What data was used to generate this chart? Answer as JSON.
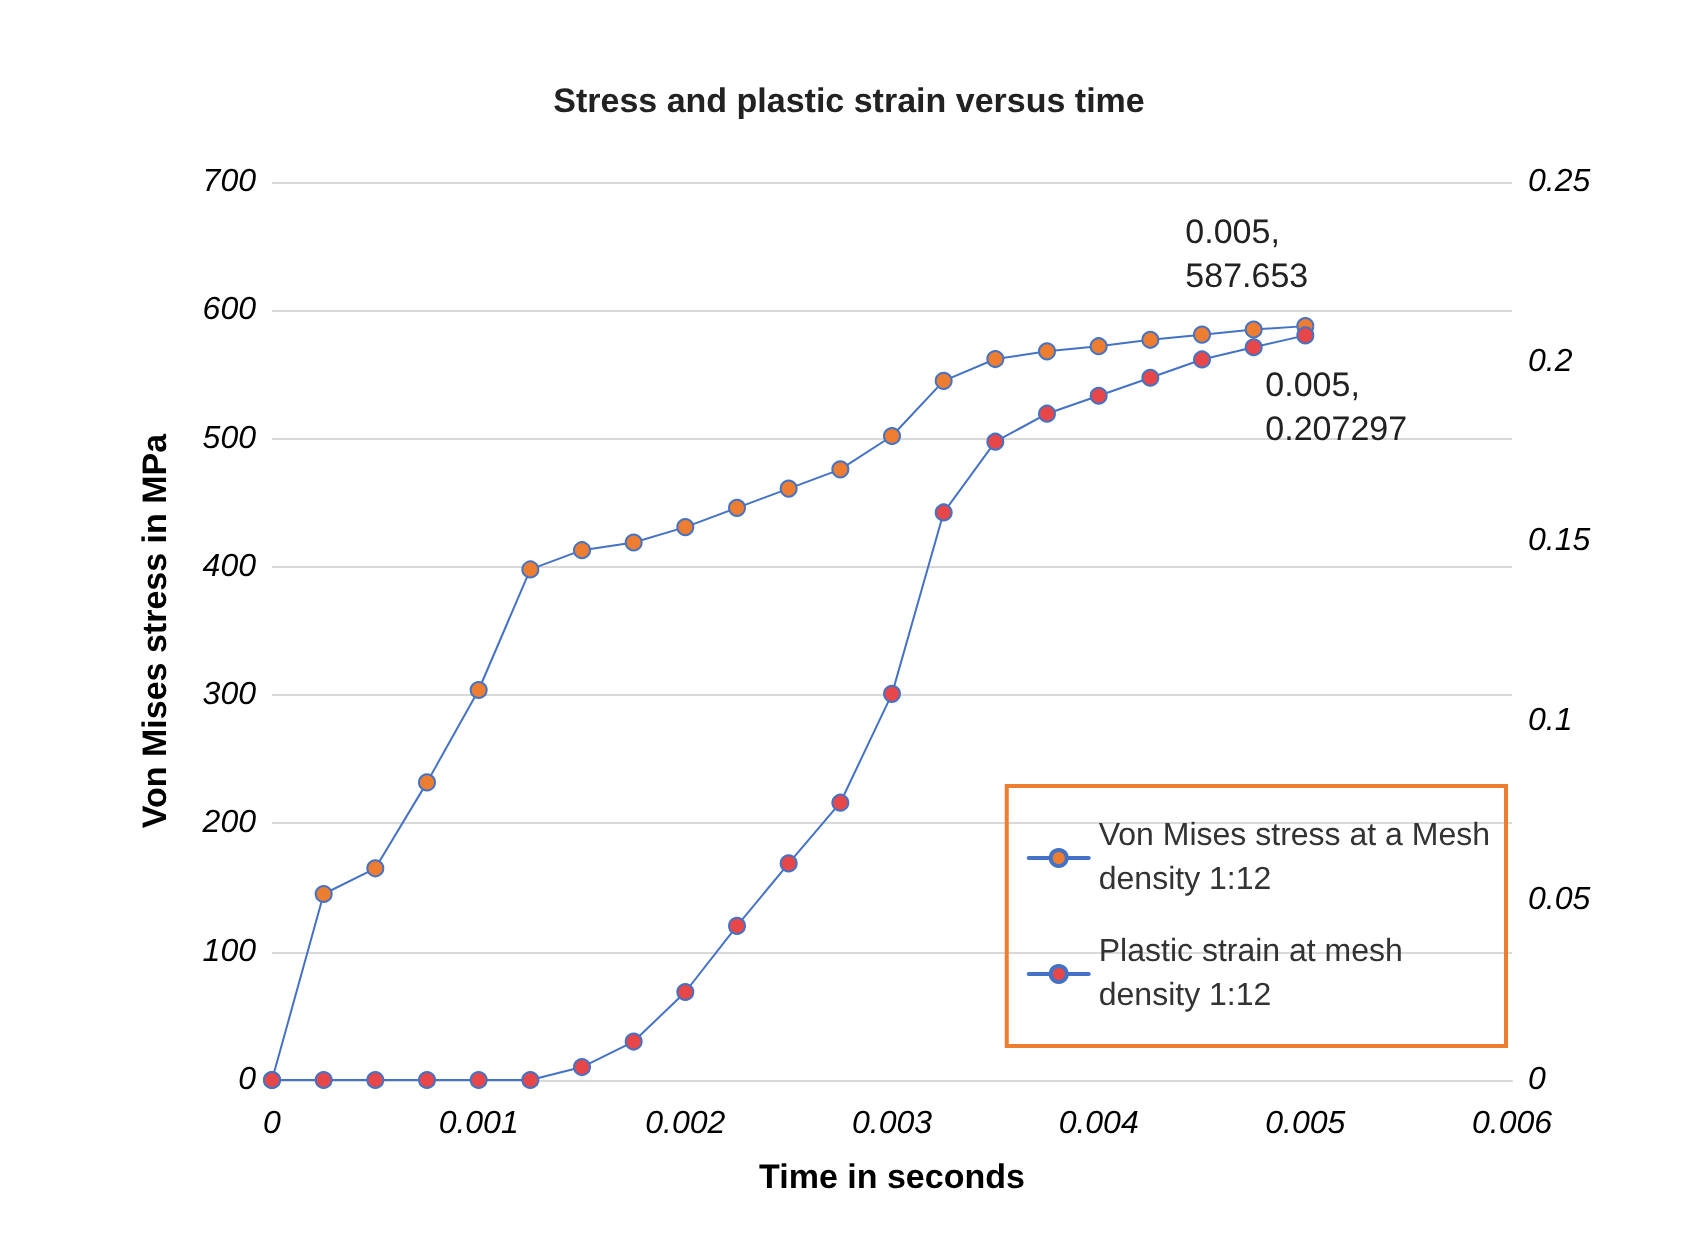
{
  "chart_data": {
    "type": "line",
    "title": "Stress and plastic strain versus time",
    "xlabel": "Time in seconds",
    "ylabel": "Von Mises stress in MPa",
    "x": [
      0,
      0.00025,
      0.0005,
      0.00075,
      0.001,
      0.00125,
      0.0015,
      0.00175,
      0.002,
      0.00225,
      0.0025,
      0.00275,
      0.003,
      0.00325,
      0.0035,
      0.00375,
      0.004,
      0.00425,
      0.0045,
      0.00475,
      0.005
    ],
    "series": [
      {
        "name": "Von Mises stress at a Mesh density 1:12",
        "color": "#ed7d31",
        "values": [
          0,
          145,
          165,
          232,
          304,
          398,
          413,
          419,
          431,
          446,
          461,
          476,
          502,
          545,
          562,
          568,
          572,
          577,
          581,
          585,
          587.653
        ]
      },
      {
        "name": "Plastic strain at mesh density 1:12",
        "color": "#e8474a",
        "axis": "y2",
        "values": [
          0,
          0,
          0,
          0,
          0,
          0,
          0.0036,
          0.0107,
          0.0245,
          0.0429,
          0.0603,
          0.0772,
          0.1075,
          0.158,
          0.1777,
          0.1855,
          0.1905,
          0.1955,
          0.2006,
          0.204,
          0.207297
        ]
      }
    ],
    "xlim": [
      0,
      0.006
    ],
    "xticks": [
      0,
      0.001,
      0.002,
      0.003,
      0.004,
      0.005,
      0.006
    ],
    "ylim": [
      0,
      700
    ],
    "yticks": [
      0,
      100,
      200,
      300,
      400,
      500,
      600,
      700
    ],
    "y2lim": [
      0,
      0.25
    ],
    "y2ticks": [
      0,
      0.05,
      0.1,
      0.15,
      0.2,
      0.25
    ],
    "annotations": [
      "0.005, 587.653",
      "0.005, 0.207297"
    ],
    "grid": "y",
    "legend": "bottom right",
    "marker": "circle",
    "line_style": "solid"
  }
}
